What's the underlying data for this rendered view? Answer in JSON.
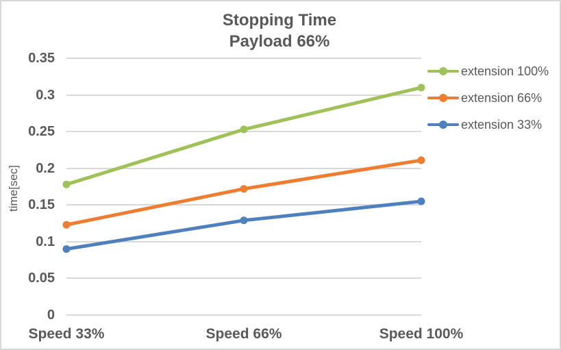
{
  "window": {
    "background": "#FFFFFF",
    "border_color": "#D7D7D7",
    "text_color": "#595959",
    "gridline_color": "#D9D9D9"
  },
  "chart_data": {
    "type": "line",
    "title": "Stopping Time",
    "subtitle": "Payload 66%",
    "xlabel": "",
    "ylabel": "time[sec]",
    "categories": [
      "Speed 33%",
      "Speed 66%",
      "Speed 100%"
    ],
    "series": [
      {
        "name": "extension 100%",
        "color": "#A0C15A",
        "values": [
          0.178,
          0.253,
          0.31
        ]
      },
      {
        "name": "extension 66%",
        "color": "#ED7D31",
        "values": [
          0.123,
          0.172,
          0.211
        ]
      },
      {
        "name": "extension 33%",
        "color": "#4E80BD",
        "values": [
          0.09,
          0.129,
          0.155
        ]
      }
    ],
    "ylim": [
      0,
      0.35
    ],
    "yticks": [
      0,
      0.05,
      0.1,
      0.15,
      0.2,
      0.25,
      0.3,
      0.35
    ],
    "ytick_labels": [
      "0",
      "0.05",
      "0.1",
      "0.15",
      "0.2",
      "0.25",
      "0.3",
      "0.35"
    ],
    "grid": true,
    "legend_position": "right",
    "marker": "circle"
  }
}
